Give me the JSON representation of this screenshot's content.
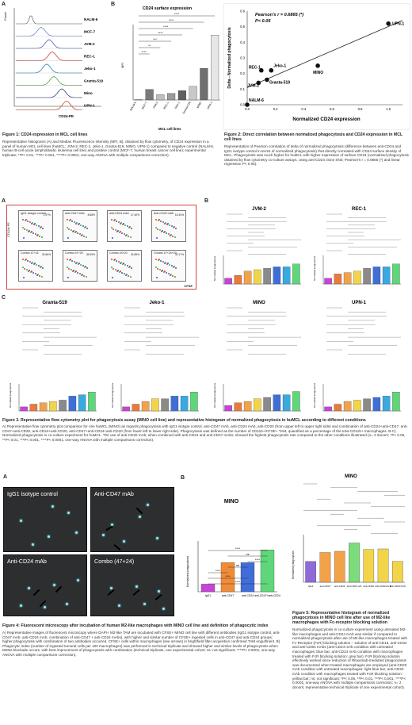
{
  "fig1": {
    "panelA": "A",
    "panelB": "B",
    "lines": [
      {
        "label": "NALM-6",
        "color": "#7a7a7a"
      },
      {
        "label": "MCF-7",
        "color": "#6d86c4"
      },
      {
        "label": "JVM-2",
        "color": "#3f5bb0"
      },
      {
        "label": "REC-1",
        "color": "#d13b3b"
      },
      {
        "label": "Jeko-1",
        "color": "#1f86c9"
      },
      {
        "label": "Granta-519",
        "color": "#4aa148"
      },
      {
        "label": "Mino",
        "color": "#2b3f84"
      },
      {
        "label": "UPN-1",
        "color": "#d0431f"
      }
    ],
    "hist_ylabel": "Count",
    "hist_xlabel": "CD24-PE",
    "bar_title": "CD24 surface expression",
    "bar_xlabel": "MCL cell lines",
    "bar_ylabel": "MFI",
    "sig": [
      "****",
      "****",
      "****",
      "****",
      "***",
      "**",
      "****"
    ],
    "caption_title": "Figure 1: CD24 expression in MCL cell lines",
    "caption_body": "Representative histograms (A) and Median Fluorescence Intensity (MFI, B), obtained by flow cytometry, of CD24 expression in a panel of human MCL cell lines (huMCL; JVM-2, REC-1, Jeko-1, Granta-519, MINO, UPN-1) compared to negative control (NALM-6, human B-cell acute lymphoblastic leukemia cell line) and positive control (MCF-7, human breast cancer cell line); experimental triplicate; **P< 0.01, ***P< 0.001, ****P< 0.0001; one-way ANOVA with multiple comparisons correction)."
  },
  "fig2": {
    "stat1": "Pearson's r = 0.6865 (*)",
    "stat2": "P< 0.05",
    "xlabel": "Normalized CD24 expression",
    "ylabel": "Delta - Normalized phagocytosis",
    "caption_title": "Figure 2: Direct correlation between normalized phagocytosis and CD24 expression in MCL cell lines",
    "caption_body": "Representation of Pearson correlation of delta of normalized phagocytosis (difference between anti-CD24 and IgG1 isotype control in terms of normalized phagocytosis) that directly correlated with CD24 surface density of MCL. Phagocytosis was much higher for huMCL with higher expression of surface CD24 (normalized phagocytosis obtained by flow cytometry co-culture assays, using anti-CD24 clone SN3; Pearson's r = 0.6865 (*) and linear regression P< 0.05)."
  },
  "chart_data": [
    {
      "type": "bar",
      "title": "CD24 surface expression",
      "xlabel": "MCL cell lines",
      "ylabel": "MFI",
      "categories": [
        "NALM-6",
        "MCF-7",
        "JVM-2",
        "REC-1",
        "Jeko-1",
        "Granta-519",
        "MINO",
        "UPN-1"
      ],
      "values": [
        20,
        700,
        350,
        430,
        620,
        900,
        2100,
        4300
      ],
      "ylim": [
        0,
        5000
      ],
      "colors": [
        "#1a1a1a",
        "#7a7a7a",
        "#bfbfbf",
        "#9a9a9a",
        "#5f5f5f",
        "#c8c8c8",
        "#6f6f6f",
        "#e6e6e6"
      ]
    },
    {
      "type": "scatter",
      "xlabel": "Normalized CD24 expression",
      "ylabel": "Delta - Normalized phagocytosis",
      "xlim": [
        0,
        1.1
      ],
      "ylim": [
        0,
        0.6
      ],
      "points": [
        {
          "label": "NALM-6",
          "x": 0.0,
          "y": 0.0
        },
        {
          "label": "JVM-2",
          "x": 0.08,
          "y": 0.14
        },
        {
          "label": "REC-1",
          "x": 0.1,
          "y": 0.22
        },
        {
          "label": "Granta-519",
          "x": 0.14,
          "y": 0.16
        },
        {
          "label": "Jeko-1",
          "x": 0.17,
          "y": 0.22
        },
        {
          "label": "MINO",
          "x": 0.5,
          "y": 0.25
        },
        {
          "label": "UPN-1",
          "x": 1.0,
          "y": 0.52
        }
      ],
      "xticks": [
        "0.0",
        "0.2",
        "0.4",
        "0.6",
        "0.8",
        "1.0"
      ],
      "yticks": [
        "0.0",
        "0.1",
        "0.2",
        "0.3",
        "0.4",
        "0.5",
        "0.6"
      ]
    },
    {
      "type": "bar",
      "title": "MINO",
      "ylabel": "Normalized phagocytosis",
      "categories": [
        "IgG1",
        "anti-CD47",
        "anti-CD24",
        "anti-CD47+anti-CD24"
      ],
      "values": [
        0.12,
        0.46,
        0.46,
        0.66
      ],
      "ylim": [
        0,
        0.8
      ],
      "colors": [
        "#c744d6",
        "#f08c38",
        "#3f6ed9",
        "#5fd67a"
      ]
    },
    {
      "type": "bar",
      "title": "MINO",
      "ylabel": "Normalized phagocytosis",
      "categories": [
        "IgG1",
        "anti-CD47",
        "anti-CD24",
        "anti-CD47+24",
        "anti-CD20",
        "anti-CD20+FcR",
        "anti-CD20 FcR"
      ],
      "values": [
        0.35,
        0.5,
        0.52,
        0.66,
        0.55,
        0.56,
        0.35
      ],
      "ylim": [
        0,
        0.8
      ],
      "colors": [
        "#8e6bd9",
        "#f2a34a",
        "#f2a34a",
        "#7bdc7b",
        "#f2d44a",
        "#f2d44a",
        "#f2d44a"
      ]
    }
  ],
  "fig3": {
    "panelA": "A",
    "panelB": "B",
    "panelC": "C",
    "yaxis": "CD11b-PE",
    "xaxis": "CFSE",
    "plots": [
      {
        "title": "IgG1 isotype control",
        "value": "2.97%"
      },
      {
        "title": "anti-CD47 mAb",
        "value": "8.66%"
      },
      {
        "title": "anti-CD24 mAb",
        "value": "17.40%"
      },
      {
        "title": "Anti-CD20 mAb",
        "value": "16.34%"
      },
      {
        "title": "Combo 47+24",
        "value": "32.86%"
      },
      {
        "title": "Combo 47+20",
        "value": "35.99%"
      },
      {
        "title": "Combo 24+20",
        "value": "24.85%"
      },
      {
        "title": "Combo 47+24+20",
        "value": "32.17%"
      }
    ],
    "bars": [
      "JVM-2",
      "REC-1",
      "Granta-519",
      "Jeko-1",
      "MINO",
      "UPN-1"
    ],
    "ylab": "Normalized phagocytosis",
    "caption_title": "Figure 3. Representative flow cytometry plot for phagocytosis assay (MINO cell line) and representative histogram of normalized phagocytosis in huMCL according to different conditions",
    "caption_body": "A) Representative flow cytometry plot comparison for one huMCL (MINO) as regards phagocytosis with IgG1 isotype control, anti-CD47 mAb, anti-CD24 mAb, anti-CD20 (from upper left to upper right side) and combination of anti-CD24+anti-CD47, anti-CD47+anti-CD20, anti-CD24+anti-CD20, anti-CD47+anti-CD24+anti-CD20 (from lower left to lower right side). Phagocytosis was defined as the number of CD11b+/CFSE+ TAM, quantified as a percentage of the total CD11b+ macrophages. B-C) Normalized phagocytosis in co-culture experiment for huMCL. The use of anti-CD20 mAb, when combined with anti-CD24 and anti-CD47 mAbs, showed the highest phagocytosis rate compared to the other conditions illustrated (n= 3 donors; *P< 0.05, **P< 0.01, ***P< 0.001, ****P< 0.0001; one-way ANOVA with multiple comparisons correction)."
  },
  "fig4": {
    "panelA": "A",
    "panelB": "B",
    "images": [
      "IgG1 isotype control",
      "Anti-CD47 mAb",
      "Anti-CD24 mAb",
      "Combo (47+24)"
    ],
    "chart_title": "MINO",
    "sig": [
      "****",
      "****",
      "****",
      "ns",
      "****",
      "ns",
      "****"
    ],
    "caption_title": "Figure 4: Fluorescent microscopy after incubation of human M2-like macrophages with MINO cell line and definition of phagocytic index",
    "caption_body": "A) Representative images of fluorescent microscopy where DAPI+ M2-like TAM are incubated with CFSE+ MINO cell line with different antibodies (IgG1 isotype control, anti-CD47 mAb, anti-CD24 mAb, combination of anti-CD47 + anti-CD24 mAbs), with higher and similar number of CFSE+ ingested cells in anti-CD47 and anti-CD24 groups; higher phagocytosis with combination of two antibodies occurred. CFSE+ cells within macrophages (see arrows) in brightfield filter acquisition confirmed TAM engulfment. B) Phagocytic index (number of ingested tumoral cells per 100 macrophages) was performed in technical triplicate and showed higher and similar levels of phagocytosis when DEMs blockade occurs, with best improvement of phagocytosis with combination (technical triplicate, one experimental cohort; ns: not significant; ****P< 0.0001; one-way ANOVA with multiple comparisons correction)."
  },
  "fig5": {
    "chart_title": "MINO",
    "caption_title": "Figure 5: Representative histogram of normalized phagocytosis in MINO cell line after use of M2-like macrophages with Fc-receptor blocking solution",
    "caption_body": "Normalized phagocytosis in co-culture experiment using untreated M2-like macrophages and anti-CD24 mAb was similar if compared to normalized phagocytosis after use of M2-like macrophages treated with Fc-Receptor (FcR) blocking solution – solution of anti-CD16, anti-CD32 and anti-CD64 mAbs (anti-CD24 mAb condition with untreated macrophages: blue bar; anti-CD24 mAb condition with macrophages treated with FcR blocking solution: grey bar). FcR blocking solution effectively worked since reduction of Rituximab-mediated phagocytosis was documented when treated macrophages are employed (anti-CD20 mAb condition with untreated macrophages: light blue bar; anti-CD20 mAb condition with macrophages treated with FcR blocking solution: yellow bar; ns: not significant; *P< 0.05, **P< 0.01, ***P< 0.001, ****P< 0.0001; one-way ANOVA with multiple comparisons correction; n= 2 donors; representative technical triplicate of one experimental cohort)."
  }
}
